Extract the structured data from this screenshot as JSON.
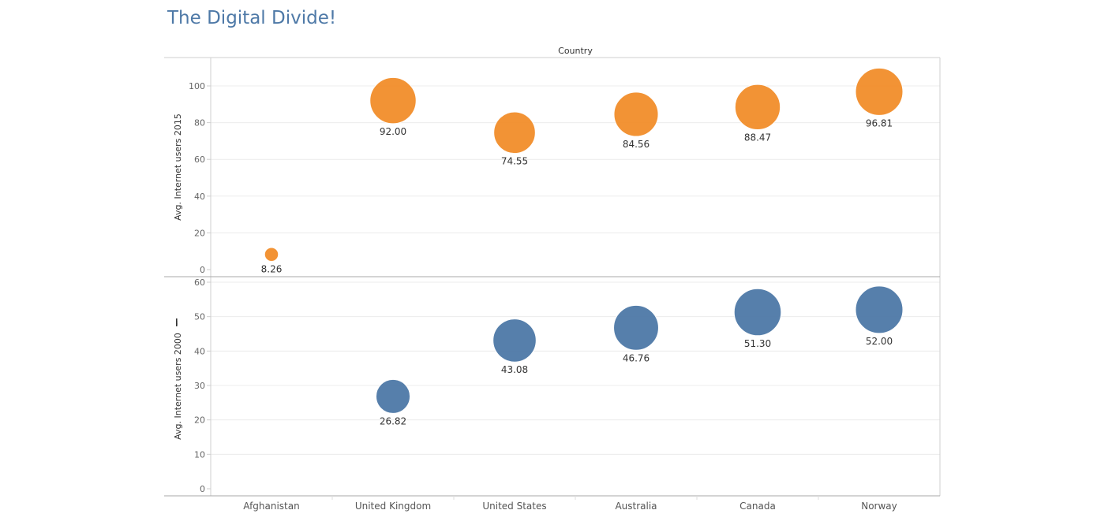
{
  "title": "The Digital Divide!",
  "chart_data": {
    "type": "scatter",
    "column_header": "Country",
    "categories": [
      "Afghanistan",
      "United Kingdom",
      "United States",
      "Australia",
      "Canada",
      "Norway"
    ],
    "panels": [
      {
        "ylabel": "Avg. Internet users 2015",
        "ylim": [
          0,
          110
        ],
        "ticks": [
          0,
          20,
          40,
          60,
          80,
          100
        ],
        "color": "#f28e2b",
        "values": [
          8.26,
          92.0,
          74.55,
          84.56,
          88.47,
          96.81
        ],
        "labels": [
          "8.26",
          "92.00",
          "74.55",
          "84.56",
          "88.47",
          "96.81"
        ]
      },
      {
        "ylabel": "Avg. Internet users 2000",
        "ylim": [
          0,
          61
        ],
        "ticks": [
          0,
          10,
          20,
          30,
          40,
          50,
          60
        ],
        "color": "#4e79a7",
        "values": [
          null,
          26.82,
          43.08,
          46.76,
          51.3,
          52.0
        ],
        "labels": [
          "",
          "26.82",
          "43.08",
          "46.76",
          "51.30",
          "52.00"
        ]
      }
    ],
    "grid": true,
    "size_encoding": "value"
  }
}
